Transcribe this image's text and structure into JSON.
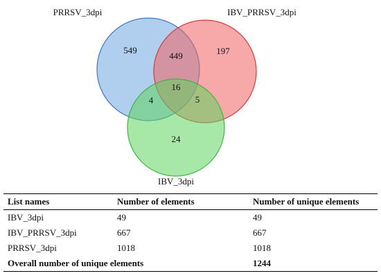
{
  "venn": {
    "sets": [
      {
        "name": "PRRSV_3dpi",
        "fill": "#6fa6e0",
        "stroke": "#3e79bf"
      },
      {
        "name": "IBV_PRRSV_3dpi",
        "fill": "#f06262",
        "stroke": "#d93a3a"
      },
      {
        "name": "IBV_3dpi",
        "fill": "#5fd35f",
        "stroke": "#3fb43f"
      }
    ],
    "regions": {
      "prrsv_only": "549",
      "ibv_prrsv_only": "197",
      "ibv_only": "24",
      "prrsv_and_ibv_prrsv": "449",
      "prrsv_and_ibv": "4",
      "ibv_prrsv_and_ibv": "5",
      "all_three": "16"
    }
  },
  "table": {
    "headers": [
      "List names",
      "Number of elements",
      "Number of unique elements"
    ],
    "rows": [
      [
        "IBV_3dpi",
        "49",
        "49"
      ],
      [
        "IBV_PRRSV_3dpi",
        "667",
        "667"
      ],
      [
        "PRRSV_3dpi",
        "1018",
        "1018"
      ]
    ],
    "footer": {
      "label": "Overall number of unique elements",
      "value": "1244"
    }
  }
}
